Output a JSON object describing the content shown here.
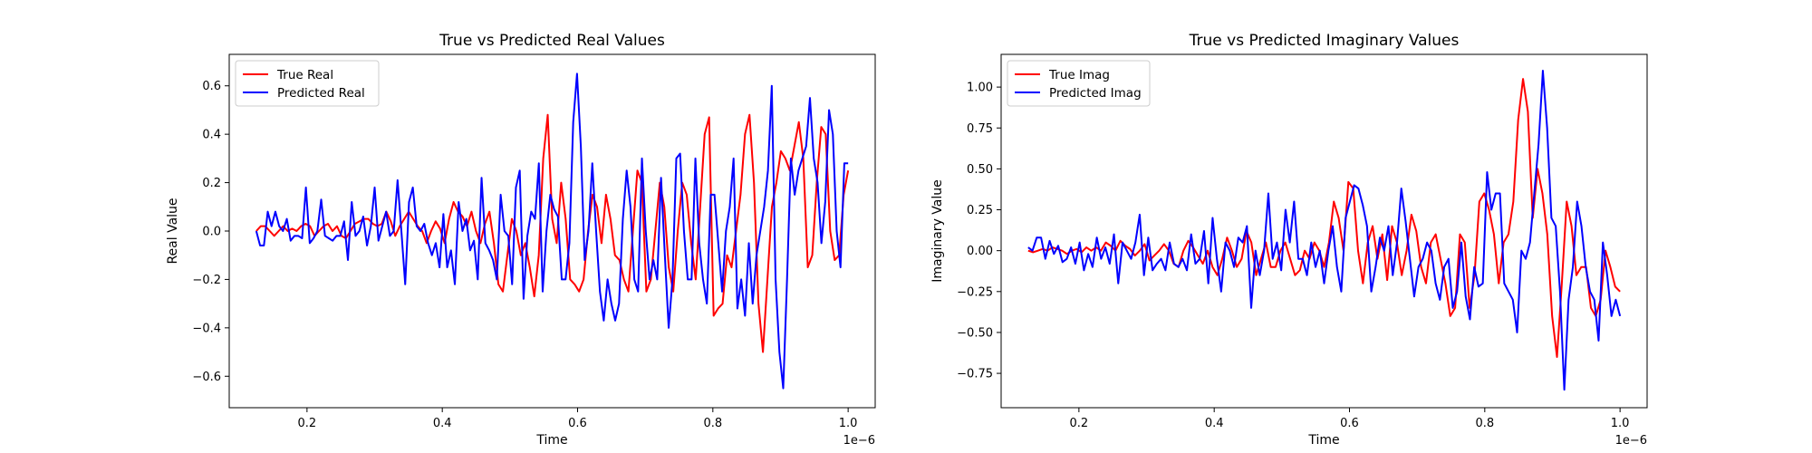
{
  "chart_data": [
    {
      "type": "line",
      "title": "True vs Predicted Real Values",
      "xlabel": "Time",
      "ylabel": "Real Value",
      "x_offset_text": "1e−6",
      "xlim": [
        0.085,
        1.04
      ],
      "ylim": [
        -0.73,
        0.73
      ],
      "xticks": [
        0.2,
        0.4,
        0.6,
        0.8,
        1.0
      ],
      "xtick_labels": [
        "0.2",
        "0.4",
        "0.6",
        "0.8",
        "1.0"
      ],
      "yticks": [
        -0.6,
        -0.4,
        -0.2,
        0.0,
        0.2,
        0.4,
        0.6
      ],
      "ytick_labels": [
        "−0.6",
        "−0.4",
        "−0.2",
        "0.0",
        "0.2",
        "0.4",
        "0.6"
      ],
      "grid": false,
      "legend": "top-left",
      "x_start": 0.125,
      "x_end": 1.0,
      "series": [
        {
          "name": "True Real",
          "color": "#ff0000",
          "values": [
            0.0,
            0.02,
            0.02,
            0.0,
            -0.02,
            0.0,
            0.02,
            0.0,
            0.01,
            0.0,
            0.02,
            0.03,
            0.02,
            -0.02,
            0.0,
            0.02,
            0.03,
            0.0,
            0.02,
            -0.02,
            -0.03,
            0.0,
            0.03,
            0.04,
            0.05,
            0.05,
            0.03,
            0.02,
            0.03,
            0.08,
            0.04,
            -0.02,
            0.02,
            0.05,
            0.08,
            0.05,
            0.02,
            0.0,
            -0.05,
            0.0,
            0.04,
            0.01,
            -0.05,
            0.05,
            0.12,
            0.08,
            0.06,
            0.02,
            0.08,
            0.0,
            -0.05,
            0.03,
            0.08,
            -0.05,
            -0.22,
            -0.25,
            -0.1,
            0.05,
            0.0,
            -0.1,
            -0.05,
            -0.15,
            -0.27,
            -0.1,
            0.3,
            0.48,
            0.05,
            -0.05,
            0.2,
            0.05,
            -0.2,
            -0.22,
            -0.25,
            -0.2,
            0.0,
            0.15,
            0.1,
            -0.05,
            0.15,
            0.05,
            -0.1,
            -0.12,
            -0.2,
            -0.25,
            0.0,
            0.25,
            0.2,
            -0.25,
            -0.2,
            0.0,
            0.2,
            0.1,
            -0.15,
            -0.25,
            0.0,
            0.2,
            0.15,
            -0.05,
            -0.2,
            0.1,
            0.4,
            0.47,
            -0.35,
            -0.32,
            -0.3,
            -0.1,
            -0.15,
            0.0,
            0.15,
            0.4,
            0.48,
            0.2,
            -0.3,
            -0.5,
            -0.2,
            0.1,
            0.2,
            0.33,
            0.3,
            0.25,
            0.35,
            0.45,
            0.3,
            -0.15,
            -0.1,
            0.2,
            0.43,
            0.4,
            0.0,
            -0.12,
            -0.1,
            0.15,
            0.25
          ]
        },
        {
          "name": "Predicted Real",
          "color": "#0000ff",
          "values": [
            0.0,
            -0.06,
            -0.06,
            0.08,
            0.02,
            0.08,
            0.02,
            0.0,
            0.05,
            -0.04,
            -0.02,
            -0.02,
            -0.03,
            0.18,
            -0.05,
            -0.03,
            0.0,
            0.13,
            -0.02,
            -0.03,
            -0.04,
            -0.02,
            -0.02,
            0.04,
            -0.12,
            0.12,
            -0.02,
            0.0,
            0.06,
            -0.06,
            0.02,
            0.18,
            -0.04,
            0.02,
            0.08,
            -0.02,
            0.0,
            0.21,
            0.0,
            -0.22,
            0.12,
            0.18,
            0.02,
            0.0,
            0.03,
            -0.05,
            -0.1,
            -0.05,
            -0.15,
            0.07,
            -0.15,
            -0.08,
            -0.22,
            0.12,
            0.0,
            0.05,
            -0.08,
            -0.04,
            -0.2,
            0.22,
            -0.05,
            -0.08,
            -0.12,
            -0.2,
            0.15,
            0.0,
            -0.02,
            -0.22,
            0.18,
            0.25,
            -0.28,
            -0.02,
            0.08,
            0.05,
            0.28,
            -0.25,
            0.0,
            0.15,
            0.09,
            0.06,
            -0.2,
            -0.2,
            -0.05,
            0.45,
            0.65,
            0.35,
            -0.12,
            0.0,
            0.28,
            0.0,
            -0.25,
            -0.37,
            -0.2,
            -0.3,
            -0.37,
            -0.3,
            0.05,
            0.25,
            0.1,
            -0.2,
            -0.25,
            0.3,
            0.0,
            -0.2,
            -0.12,
            -0.2,
            0.22,
            -0.1,
            -0.4,
            -0.2,
            0.3,
            0.32,
            0.0,
            -0.2,
            -0.2,
            0.3,
            -0.05,
            -0.2,
            -0.3,
            0.15,
            0.15,
            -0.05,
            -0.25,
            0.0,
            0.1,
            0.3,
            -0.32,
            -0.2,
            -0.35,
            -0.05,
            -0.3,
            -0.1,
            0.0,
            0.1,
            0.25,
            0.6,
            -0.2,
            -0.5,
            -0.65,
            -0.2,
            0.3,
            0.15,
            0.25,
            0.3,
            0.35,
            0.55,
            0.3,
            0.2,
            -0.05,
            0.12,
            0.5,
            0.4,
            0.0,
            -0.15,
            0.28,
            0.28
          ]
        }
      ]
    },
    {
      "type": "line",
      "title": "True vs Predicted Imaginary Values",
      "xlabel": "Time",
      "ylabel": "Imaginary Value",
      "x_offset_text": "1e−6",
      "xlim": [
        0.085,
        1.04
      ],
      "ylim": [
        -0.96,
        1.2
      ],
      "xticks": [
        0.2,
        0.4,
        0.6,
        0.8,
        1.0
      ],
      "xtick_labels": [
        "0.2",
        "0.4",
        "0.6",
        "0.8",
        "1.0"
      ],
      "yticks": [
        -0.75,
        -0.5,
        -0.25,
        0.0,
        0.25,
        0.5,
        0.75,
        1.0
      ],
      "ytick_labels": [
        "−0.75",
        "−0.50",
        "−0.25",
        "0.00",
        "0.25",
        "0.50",
        "0.75",
        "1.00"
      ],
      "grid": false,
      "legend": "top-left",
      "x_start": 0.125,
      "x_end": 1.0,
      "series": [
        {
          "name": "True Imag",
          "color": "#ff0000",
          "values": [
            0.0,
            -0.01,
            0.0,
            0.01,
            0.0,
            0.02,
            0.01,
            0.0,
            -0.02,
            0.0,
            0.01,
            -0.01,
            0.02,
            0.0,
            0.02,
            0.0,
            0.05,
            0.03,
            0.0,
            0.06,
            0.03,
            0.01,
            -0.03,
            0.0,
            0.04,
            -0.06,
            -0.03,
            0.0,
            0.04,
            0.0,
            -0.08,
            -0.1,
            0.0,
            0.06,
            0.02,
            -0.03,
            -0.08,
            0.0,
            -0.1,
            -0.15,
            -0.05,
            0.08,
            0.0,
            -0.1,
            -0.05,
            0.12,
            0.05,
            -0.15,
            -0.05,
            0.05,
            -0.1,
            -0.1,
            0.0,
            0.05,
            -0.05,
            -0.15,
            -0.12,
            0.0,
            -0.05,
            0.05,
            0.0,
            -0.1,
            0.05,
            0.3,
            0.2,
            0.0,
            0.42,
            0.38,
            0.0,
            -0.2,
            0.05,
            0.15,
            -0.05,
            0.1,
            -0.18,
            0.15,
            0.05,
            -0.15,
            0.0,
            0.22,
            0.12,
            -0.1,
            -0.2,
            0.05,
            0.1,
            -0.05,
            -0.2,
            -0.4,
            -0.35,
            0.1,
            0.05,
            -0.35,
            -0.15,
            0.3,
            0.35,
            0.25,
            0.1,
            -0.2,
            0.05,
            0.1,
            0.3,
            0.8,
            1.05,
            0.85,
            0.2,
            0.5,
            0.35,
            0.1,
            -0.4,
            -0.65,
            -0.2,
            0.3,
            0.15,
            -0.15,
            -0.1,
            -0.1,
            -0.35,
            -0.4,
            -0.3,
            0.0,
            -0.1,
            -0.22,
            -0.25
          ]
        },
        {
          "name": "Predicted Imag",
          "color": "#0000ff",
          "values": [
            0.02,
            0.0,
            0.08,
            0.08,
            -0.05,
            0.06,
            -0.02,
            0.03,
            -0.07,
            -0.05,
            0.02,
            -0.08,
            0.05,
            -0.12,
            -0.02,
            -0.1,
            0.08,
            -0.05,
            0.02,
            -0.08,
            0.1,
            -0.2,
            0.05,
            0.0,
            -0.05,
            0.05,
            0.22,
            -0.15,
            0.08,
            -0.12,
            -0.08,
            -0.05,
            -0.12,
            0.05,
            -0.08,
            -0.1,
            -0.05,
            -0.12,
            0.1,
            -0.08,
            -0.05,
            0.12,
            -0.2,
            0.2,
            -0.05,
            -0.25,
            0.05,
            0.0,
            -0.1,
            0.08,
            0.05,
            0.15,
            -0.35,
            0.0,
            -0.15,
            0.0,
            0.35,
            -0.05,
            0.05,
            -0.12,
            0.25,
            0.05,
            0.3,
            -0.05,
            -0.05,
            -0.15,
            0.05,
            -0.1,
            0.0,
            -0.2,
            0.0,
            0.15,
            -0.1,
            -0.25,
            0.2,
            0.3,
            0.4,
            0.38,
            0.28,
            0.15,
            -0.25,
            -0.1,
            0.08,
            0.0,
            0.15,
            -0.15,
            0.05,
            0.38,
            0.18,
            -0.05,
            -0.28,
            -0.1,
            -0.05,
            0.05,
            0.0,
            -0.2,
            -0.3,
            -0.1,
            -0.05,
            -0.35,
            -0.25,
            0.05,
            -0.28,
            -0.42,
            -0.1,
            -0.22,
            -0.2,
            0.48,
            0.25,
            0.35,
            0.35,
            -0.2,
            -0.25,
            -0.3,
            -0.5,
            0.0,
            -0.05,
            0.05,
            0.35,
            0.65,
            1.1,
            0.75,
            0.2,
            0.15,
            -0.25,
            -0.85,
            -0.3,
            -0.1,
            0.3,
            0.15,
            -0.1,
            -0.25,
            -0.3,
            -0.55,
            0.05,
            -0.15,
            -0.4,
            -0.3,
            -0.4
          ]
        }
      ]
    }
  ]
}
